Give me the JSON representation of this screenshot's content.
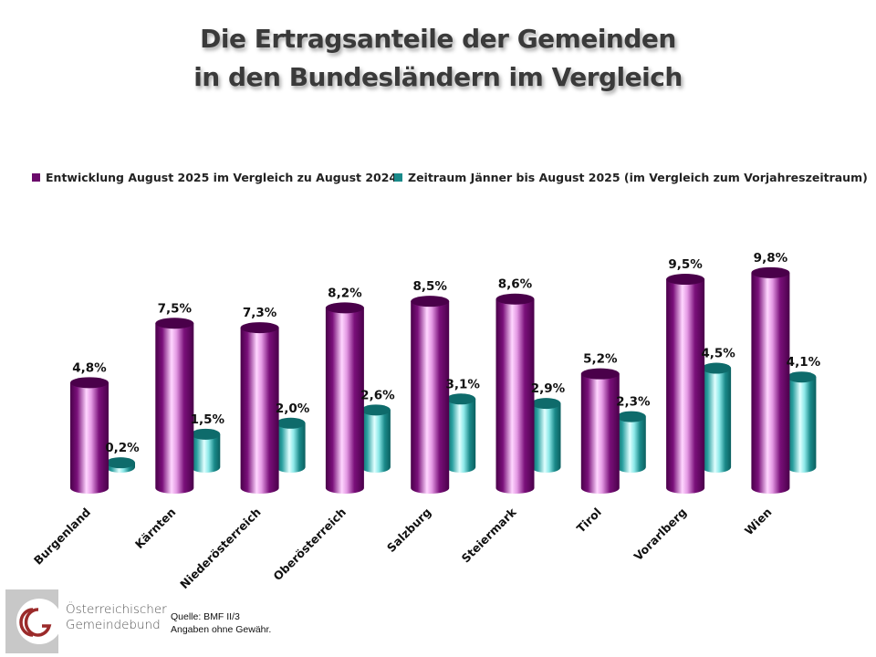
{
  "title": {
    "line1": "Die Ertragsanteile der Gemeinden",
    "line2": "in den Bundesländern im Vergleich"
  },
  "legend": {
    "series1": "Entwicklung August 2025 im Vergleich zu August 2024",
    "series2": "Zeitraum Jänner bis August 2025 (im Vergleich zum Vorjahreszeitraum)"
  },
  "colors": {
    "series1": "#6b0a6b",
    "series1_highlight": "#ffd6ff",
    "series2": "#1a8a8a",
    "series2_highlight": "#d9ffff",
    "title": "#3a3a3a",
    "logo_red": "#9b2a2a"
  },
  "chart_data": {
    "type": "bar",
    "title": "Die Ertragsanteile der Gemeinden in den Bundesländern im Vergleich",
    "xlabel": "",
    "ylabel": "",
    "ylim": [
      0,
      10
    ],
    "grid": false,
    "legend_position": "top",
    "categories": [
      "Burgenland",
      "Kärnten",
      "Niederösterreich",
      "Oberösterreich",
      "Salzburg",
      "Steiermark",
      "Tirol",
      "Vorarlberg",
      "Wien"
    ],
    "series": [
      {
        "name": "Entwicklung August 2025 im Vergleich zu August 2024",
        "values": [
          4.8,
          7.5,
          7.3,
          8.2,
          8.5,
          8.6,
          5.2,
          9.5,
          9.8
        ],
        "labels": [
          "4,8%",
          "7,5%",
          "7,3%",
          "8,2%",
          "8,5%",
          "8,6%",
          "5,2%",
          "9,5%",
          "9,8%"
        ]
      },
      {
        "name": "Zeitraum Jänner bis August 2025 (im Vergleich zum Vorjahreszeitraum)",
        "values": [
          0.2,
          1.5,
          2.0,
          2.6,
          3.1,
          2.9,
          2.3,
          4.5,
          4.1
        ],
        "labels": [
          "0,2%",
          "1,5%",
          "2,0%",
          "2,6%",
          "3,1%",
          "2,9%",
          "2,3%",
          "4,5%",
          "4,1%"
        ]
      }
    ]
  },
  "footer": {
    "logo_line1": "Österreichischer",
    "logo_line2": "Gemeindebund",
    "source_line1": "Quelle: BMF II/3",
    "source_line2": "Angaben ohne Gewähr."
  }
}
